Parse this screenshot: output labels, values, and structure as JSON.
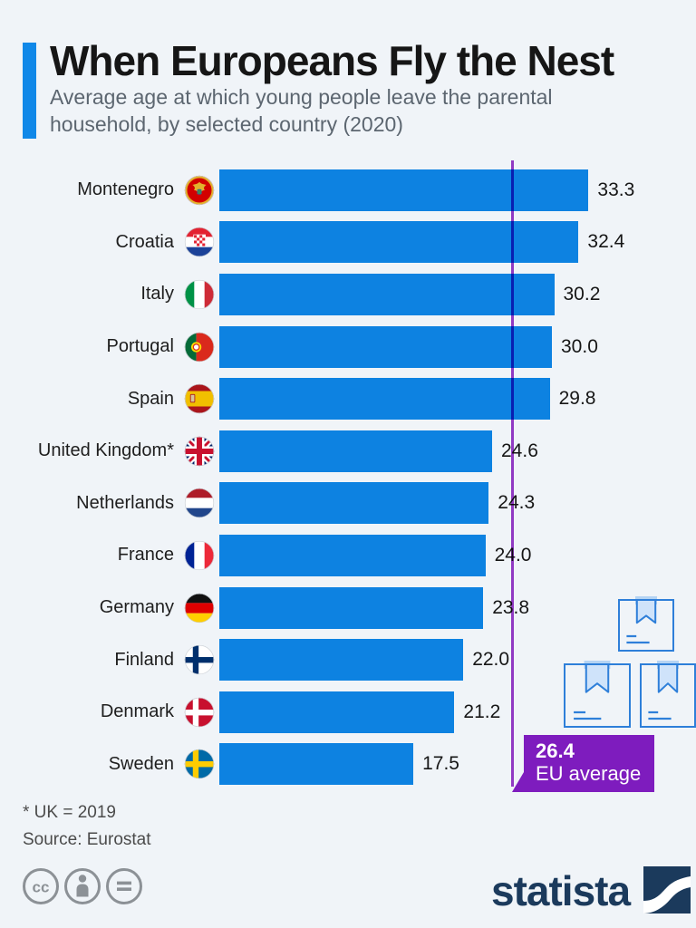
{
  "header": {
    "title": "When Europeans Fly the Nest",
    "subtitle": "Average age at which young people leave the parental household, by selected country (2020)"
  },
  "chart_data": {
    "type": "bar",
    "orientation": "horizontal",
    "title": "When Europeans Fly the Nest",
    "subtitle": "Average age at which young people leave the parental household, by selected country (2020)",
    "unit": "average age (years)",
    "categories": [
      "Montenegro",
      "Croatia",
      "Italy",
      "Portugal",
      "Spain",
      "United Kingdom*",
      "Netherlands",
      "France",
      "Germany",
      "Finland",
      "Denmark",
      "Sweden"
    ],
    "values": [
      33.3,
      32.4,
      30.2,
      30.0,
      29.8,
      24.6,
      24.3,
      24.0,
      23.8,
      22.0,
      21.2,
      17.5
    ],
    "value_labels": [
      "33.3",
      "32.4",
      "30.2",
      "30.0",
      "29.8",
      "24.6",
      "24.3",
      "24.0",
      "23.8",
      "22.0",
      "21.2",
      "17.5"
    ],
    "flags": [
      "montenegro",
      "croatia",
      "italy",
      "portugal",
      "spain",
      "uk",
      "netherlands",
      "france",
      "germany",
      "finland",
      "denmark",
      "sweden"
    ],
    "reference_line": {
      "value": 26.4,
      "label": "EU average"
    },
    "xlim": [
      0,
      35
    ],
    "grid": false,
    "legend": false
  },
  "footer": {
    "footnote": "* UK = 2019",
    "source": "Source: Eurostat"
  },
  "branding": {
    "logo_text": "statista",
    "license_icons": [
      "cc",
      "by",
      "nd"
    ]
  },
  "colors": {
    "background": "#f0f4f8",
    "bar": "#0d82e1",
    "accent": "#1088e8",
    "reference_line": "#9a3cc9",
    "badge": "#7e1cbe",
    "logo_navy": "#1b3a5c"
  }
}
